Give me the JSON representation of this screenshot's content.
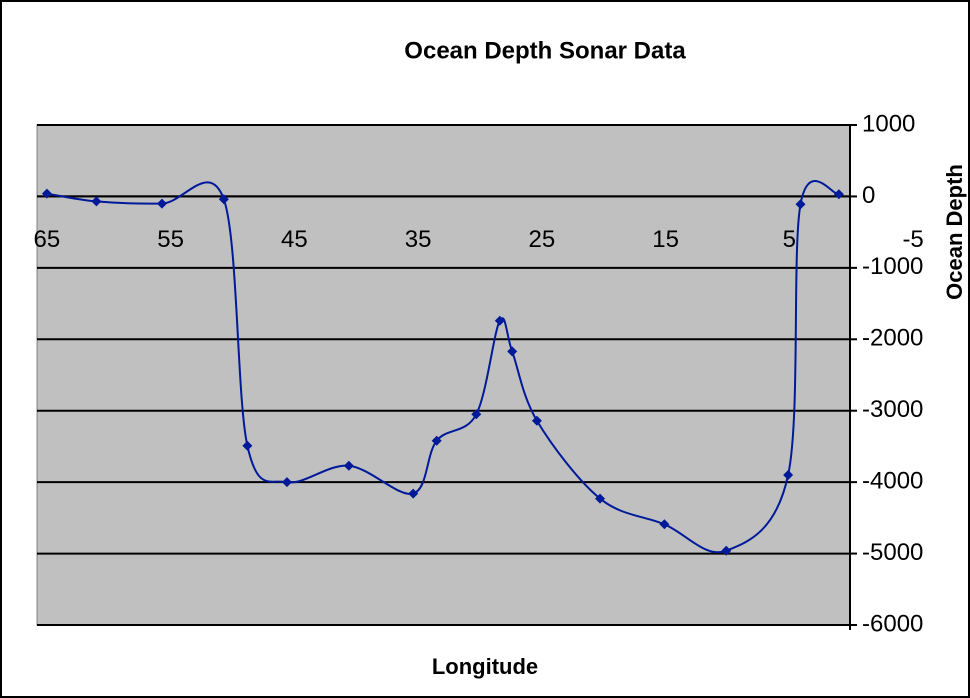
{
  "chart_data": {
    "type": "line",
    "title": "Ocean Depth Sonar Data",
    "x_label": "Longitude",
    "y_label": "Ocean Depth",
    "series": [
      {
        "name": "Ocean Depth",
        "color": "#001a99",
        "x": [
          65,
          61,
          55.7,
          50.7,
          48.8,
          45.6,
          40.6,
          35.4,
          33.5,
          30.3,
          28.4,
          27.4,
          25.4,
          20.3,
          15.1,
          10.1,
          5.1,
          4.1,
          1
        ],
        "values": [
          40,
          -70,
          -100,
          -40,
          -3490,
          -4000,
          -3770,
          -4160,
          -3420,
          -3050,
          -1740,
          -2170,
          -3140,
          -4230,
          -4590,
          -4960,
          -3900,
          -110,
          30
        ]
      }
    ],
    "xlim": [
      65.8,
      0.1
    ],
    "xticks": [
      65,
      55,
      45,
      35,
      25,
      15,
      5,
      -5
    ],
    "ylim": [
      -6000,
      1000
    ],
    "yticks": [
      1000,
      0,
      -1000,
      -2000,
      -3000,
      -4000,
      -5000,
      -6000
    ],
    "grid": true
  }
}
